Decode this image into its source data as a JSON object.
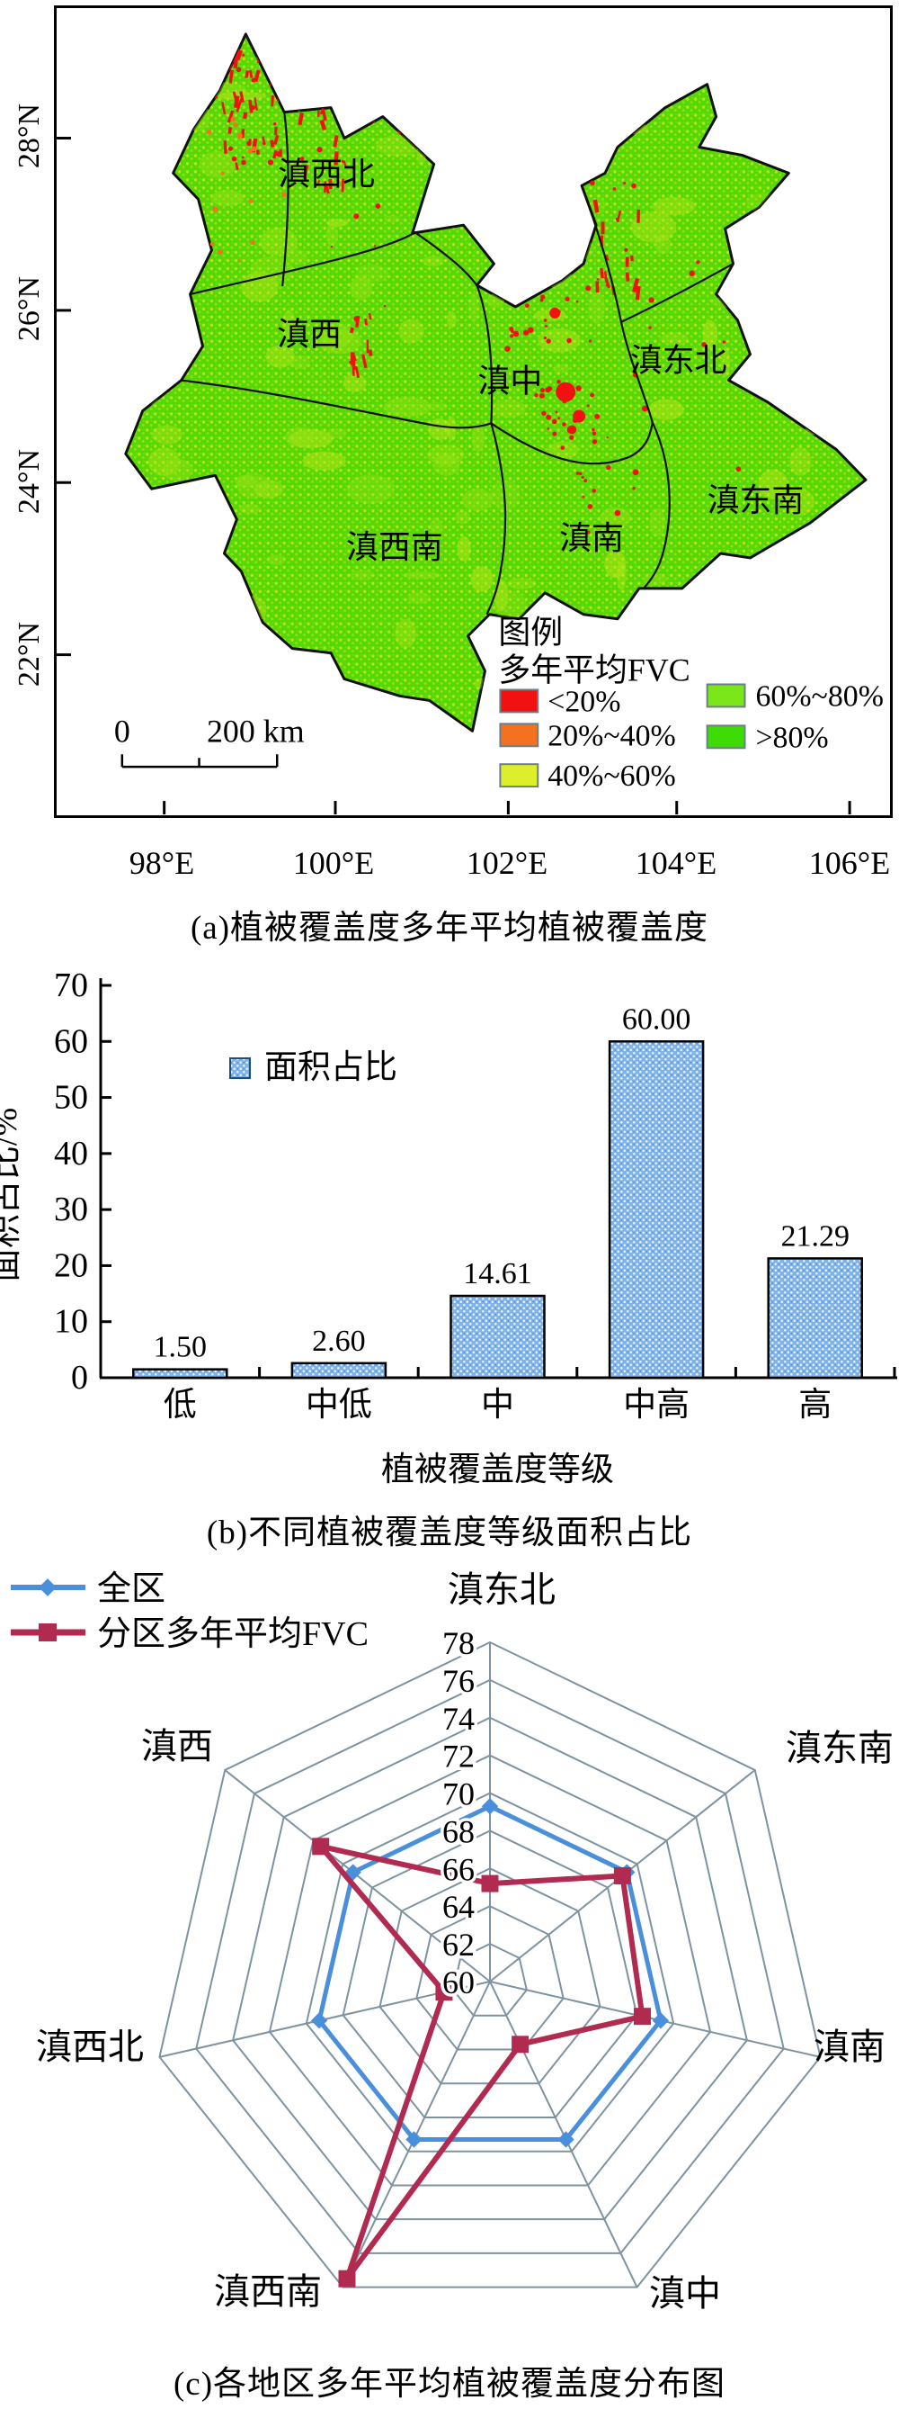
{
  "panel_a": {
    "caption": "(a)植被覆盖度多年平均植被覆盖度",
    "region_labels": [
      "滇西北",
      "滇西",
      "滇中",
      "滇东北",
      "滇东南",
      "滇南",
      "滇西南"
    ],
    "lat_ticks": [
      "28°N",
      "26°N",
      "24°N",
      "22°N"
    ],
    "lon_ticks": [
      "98°E",
      "100°E",
      "102°E",
      "104°E",
      "106°E"
    ],
    "legend": {
      "title": "图例",
      "subtitle": "多年平均FVC",
      "items": [
        {
          "label": "<20%",
          "color": "#F21111"
        },
        {
          "label": "20%~40%",
          "color": "#F4711F"
        },
        {
          "label": "40%~60%",
          "color": "#DDEE2C"
        },
        {
          "label": "60%~80%",
          "color": "#7BE61A"
        },
        {
          "label": ">80%",
          "color": "#3EDC04"
        }
      ]
    },
    "scale_bar": {
      "start": "0",
      "end": "200 km"
    },
    "map_colors": {
      "land_green": "#55D805",
      "mottle_yellow": "#B8E41A",
      "boundary": "#111111",
      "speckle_red": "#F21111"
    }
  },
  "panel_b": {
    "caption": "(b)不同植被覆盖度等级面积占比"
  },
  "panel_c": {
    "caption": "(c)各地区多年平均植被覆盖度分布图"
  },
  "chart_data": [
    {
      "type": "bar",
      "title": "(b)不同植被覆盖度等级面积占比",
      "categories": [
        "低",
        "中低",
        "中",
        "中高",
        "高"
      ],
      "values": [
        1.5,
        2.6,
        14.61,
        60.0,
        21.29
      ],
      "value_labels": [
        "1.50",
        "2.60",
        "14.61",
        "60.00",
        "21.29"
      ],
      "xlabel": "植被覆盖度等级",
      "ylabel": "面积占比/%",
      "ylim": [
        0,
        70
      ],
      "ytick_step": 10,
      "legend_label": "面积占比",
      "bar_fill": "#7FB3EA",
      "bar_border": "#000000",
      "grid": false,
      "legend_position": "upper-left-inside"
    },
    {
      "type": "radar",
      "title": "(c)各地区多年平均植被覆盖度分布图",
      "categories": [
        "滇东北",
        "滇东南",
        "滇南",
        "滇中",
        "滇西南",
        "滇西北",
        "滇西"
      ],
      "series": [
        {
          "name": "全区",
          "values": [
            69.3,
            69.3,
            69.3,
            69.3,
            69.3,
            69.3,
            69.3
          ],
          "color": "#4A8FDC",
          "marker": "diamond"
        },
        {
          "name": "分区多年平均FVC",
          "values": [
            65.2,
            69.0,
            68.3,
            63.7,
            77.5,
            62.5,
            71.5
          ],
          "color": "#B12A50",
          "marker": "square"
        }
      ],
      "r_axis": {
        "min": 60,
        "max": 78,
        "step": 2,
        "tick_labels": [
          "78",
          "76",
          "74",
          "72",
          "70",
          "68",
          "66",
          "64",
          "62",
          "60"
        ]
      },
      "grid_color": "#7E93A0",
      "legend_position": "top-left"
    }
  ]
}
